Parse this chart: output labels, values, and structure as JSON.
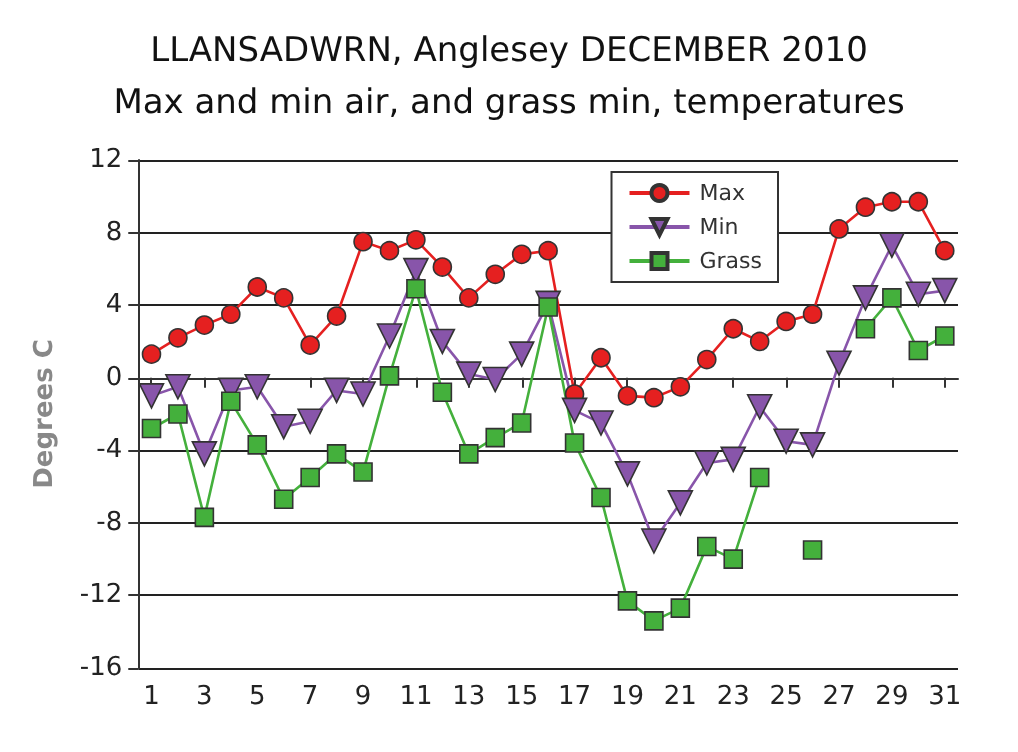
{
  "chart_data": {
    "type": "line",
    "title": "LLANSADWRN, Anglesey DECEMBER 2010",
    "subtitle": "Max and min air, and grass min, temperatures",
    "ylabel": "Degrees C",
    "x": [
      1,
      2,
      3,
      4,
      5,
      6,
      7,
      8,
      9,
      10,
      11,
      12,
      13,
      14,
      15,
      16,
      17,
      18,
      19,
      20,
      21,
      22,
      23,
      24,
      25,
      26,
      27,
      28,
      29,
      30,
      31
    ],
    "xlim": [
      0.5,
      31.5
    ],
    "xticks": [
      1,
      3,
      5,
      7,
      9,
      11,
      13,
      15,
      17,
      19,
      21,
      23,
      25,
      27,
      29,
      31
    ],
    "ylim": [
      -16,
      12
    ],
    "yticks": [
      -16,
      -12,
      -8,
      -4,
      0,
      4,
      8,
      12
    ],
    "grid": "y",
    "legend": "top right",
    "series": [
      {
        "name": "Max",
        "color": "#e52020",
        "marker": "circle",
        "values": [
          1.3,
          2.2,
          2.9,
          3.5,
          5.0,
          4.4,
          1.8,
          3.4,
          7.5,
          7.0,
          7.6,
          6.1,
          4.4,
          5.7,
          6.8,
          7.0,
          -0.9,
          1.1,
          -1.0,
          -1.1,
          -0.5,
          1.0,
          2.7,
          2.0,
          3.1,
          3.5,
          8.2,
          9.4,
          9.7,
          9.7,
          7.0
        ]
      },
      {
        "name": "Min",
        "color": "#8855aa",
        "marker": "triangle",
        "values": [
          -1.0,
          -0.5,
          -4.2,
          -0.7,
          -0.5,
          -2.7,
          -2.4,
          -0.7,
          -0.9,
          2.3,
          5.9,
          2.0,
          0.2,
          -0.1,
          1.3,
          4.1,
          -1.8,
          -2.5,
          -5.3,
          -9.0,
          -6.9,
          -4.7,
          -4.5,
          -1.6,
          -3.5,
          -3.7,
          0.8,
          4.4,
          7.3,
          4.6,
          4.8
        ]
      },
      {
        "name": "Grass",
        "color": "#44b03c",
        "marker": "square",
        "values": [
          -2.8,
          -2.0,
          -7.7,
          -1.3,
          -3.7,
          -6.7,
          -5.5,
          -4.2,
          -5.2,
          0.1,
          4.9,
          -0.8,
          -4.2,
          -3.3,
          -2.5,
          3.9,
          -3.6,
          -6.6,
          -12.3,
          -13.4,
          -12.7,
          -9.3,
          -10.0,
          -5.5,
          null,
          -9.5,
          null,
          2.7,
          4.4,
          1.5,
          2.3
        ]
      }
    ]
  }
}
